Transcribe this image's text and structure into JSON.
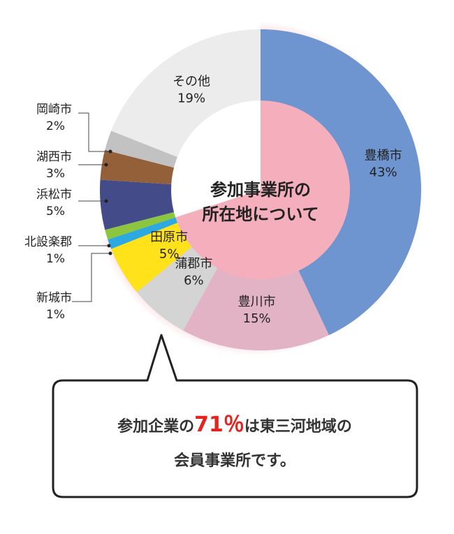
{
  "chart_data": {
    "type": "pie",
    "title": "参加事業所の所在地について",
    "title_lines": [
      "参加事業所の",
      "所在地について"
    ],
    "slices": [
      {
        "label": "豊橋市",
        "value": 43,
        "value_text": "43%",
        "color": "#6e95cf",
        "label_pos": "inside"
      },
      {
        "label": "豊川市",
        "value": 15,
        "value_text": "15%",
        "color": "#e2b3c4",
        "label_pos": "inside"
      },
      {
        "label": "蒲郡市",
        "value": 6,
        "value_text": "6%",
        "color": "#d4d4d4",
        "label_pos": "inside"
      },
      {
        "label": "田原市",
        "value": 5,
        "value_text": "5%",
        "color": "#ffe21a",
        "label_pos": "inside"
      },
      {
        "label": "新城市",
        "value": 1,
        "value_text": "1%",
        "color": "#2da9e1",
        "label_pos": "outside"
      },
      {
        "label": "北設楽郡",
        "value": 1,
        "value_text": "1%",
        "color": "#8cc63f",
        "label_pos": "outside"
      },
      {
        "label": "浜松市",
        "value": 5,
        "value_text": "5%",
        "color": "#434c88",
        "label_pos": "outside"
      },
      {
        "label": "湖西市",
        "value": 3,
        "value_text": "3%",
        "color": "#93603a",
        "label_pos": "outside"
      },
      {
        "label": "岡崎市",
        "value": 2,
        "value_text": "2%",
        "color": "#c2c2c2",
        "label_pos": "outside"
      },
      {
        "label": "その他",
        "value": 19,
        "value_text": "19%",
        "color": "#ececec",
        "label_pos": "inside"
      }
    ],
    "legend": "none"
  },
  "callout": {
    "line1_before": "参加企業の",
    "line1_highlight": "71％",
    "line1_after": "は東三河地域の",
    "line2": "会員事業所です。",
    "highlight_color": "#e5231f"
  }
}
